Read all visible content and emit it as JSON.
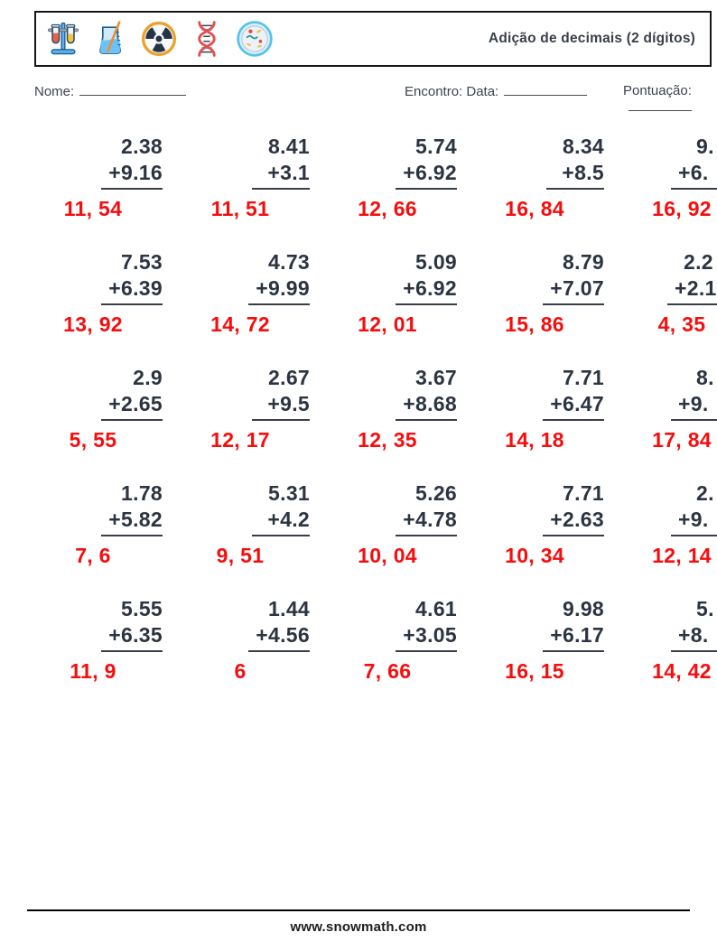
{
  "header": {
    "title": "Adição de decimais (2 dígitos)",
    "icons": [
      "test-tubes",
      "beaker",
      "radiation",
      "dna",
      "petri-dish"
    ]
  },
  "fields": {
    "name_label": "Nome:",
    "date_label": "Encontro: Data:",
    "score_label": "Pontuação:"
  },
  "problems": {
    "rows": [
      [
        {
          "top": "2.38",
          "bottom": "+9.16",
          "answer": "11, 54"
        },
        {
          "top": "8.41",
          "bottom": "+3.1",
          "answer": "11, 51"
        },
        {
          "top": "5.74",
          "bottom": "+6.92",
          "answer": "12, 66"
        },
        {
          "top": "8.34",
          "bottom": "+8.5",
          "answer": "16, 84"
        },
        {
          "top": "9.",
          "bottom": "+6.",
          "answer": "16, 92",
          "cut": true
        }
      ],
      [
        {
          "top": "7.53",
          "bottom": "+6.39",
          "answer": "13, 92"
        },
        {
          "top": "4.73",
          "bottom": "+9.99",
          "answer": "14, 72"
        },
        {
          "top": "5.09",
          "bottom": "+6.92",
          "answer": "12, 01"
        },
        {
          "top": "8.79",
          "bottom": "+7.07",
          "answer": "15, 86"
        },
        {
          "top": "2.2",
          "bottom": "+2.1",
          "answer": "4, 35",
          "cut": true
        }
      ],
      [
        {
          "top": "2.9",
          "bottom": "+2.65",
          "answer": "5, 55"
        },
        {
          "top": "2.67",
          "bottom": "+9.5",
          "answer": "12, 17"
        },
        {
          "top": "3.67",
          "bottom": "+8.68",
          "answer": "12, 35"
        },
        {
          "top": "7.71",
          "bottom": "+6.47",
          "answer": "14, 18"
        },
        {
          "top": "8.",
          "bottom": "+9.",
          "answer": "17, 84",
          "cut": true
        }
      ],
      [
        {
          "top": "1.78",
          "bottom": "+5.82",
          "answer": "7, 6"
        },
        {
          "top": "5.31",
          "bottom": "+4.2",
          "answer": "9, 51"
        },
        {
          "top": "5.26",
          "bottom": "+4.78",
          "answer": "10, 04"
        },
        {
          "top": "7.71",
          "bottom": "+2.63",
          "answer": "10, 34"
        },
        {
          "top": "2.",
          "bottom": "+9.",
          "answer": "12, 14",
          "cut": true
        }
      ],
      [
        {
          "top": "5.55",
          "bottom": "+6.35",
          "answer": "11, 9"
        },
        {
          "top": "1.44",
          "bottom": "+4.56",
          "answer": "6"
        },
        {
          "top": "4.61",
          "bottom": "+3.05",
          "answer": "7, 66"
        },
        {
          "top": "9.98",
          "bottom": "+6.17",
          "answer": "16, 15"
        },
        {
          "top": "5.",
          "bottom": "+8.",
          "answer": "14, 42",
          "cut": true
        }
      ]
    ]
  },
  "footer": {
    "website": "www.snowmath.com"
  },
  "colors": {
    "answer_red": "#f60d0d",
    "ink": "#2c3442"
  }
}
